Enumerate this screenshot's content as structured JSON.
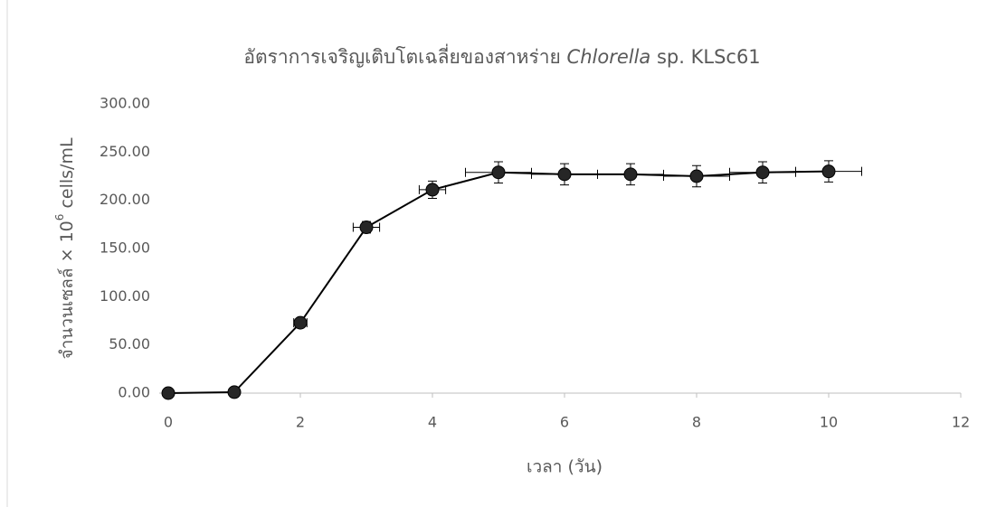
{
  "chart_data": {
    "type": "line",
    "title": [
      "อัตราการเจริญเติบโตเฉลี่ยของสาหร่าย ",
      "Chlorella",
      " sp. KLSc61"
    ],
    "x_label": "เวลา (วัน)",
    "y_label": [
      "จำนวนเซลล์ × 10",
      "6",
      " cells/mL"
    ],
    "x": [
      0,
      1,
      2,
      3,
      4,
      5,
      6,
      7,
      8,
      9,
      10
    ],
    "values": [
      0,
      1,
      73,
      172,
      211,
      229,
      227,
      227,
      225,
      229,
      230
    ],
    "y_errors": [
      0,
      0,
      2,
      6,
      9,
      11,
      11,
      11,
      11,
      11,
      11
    ],
    "x_errors": [
      0,
      0,
      0.1,
      0.2,
      0.2,
      0.5,
      0.5,
      0.5,
      0.5,
      0.5,
      0.5
    ],
    "color": "#000000",
    "marker_color": "#262626",
    "xlim": [
      0,
      12
    ],
    "xticks": [
      0,
      2,
      4,
      6,
      8,
      10,
      12
    ],
    "ylim": [
      0,
      300
    ],
    "yticks": [
      {
        "value": 0,
        "label": "0.00"
      },
      {
        "value": 50,
        "label": "50.00"
      },
      {
        "value": 100,
        "label": "100.00"
      },
      {
        "value": 150,
        "label": "150.00"
      },
      {
        "value": 200,
        "label": "200.00"
      },
      {
        "value": 250,
        "label": "250.00"
      },
      {
        "value": 300,
        "label": "300.00"
      }
    ]
  }
}
